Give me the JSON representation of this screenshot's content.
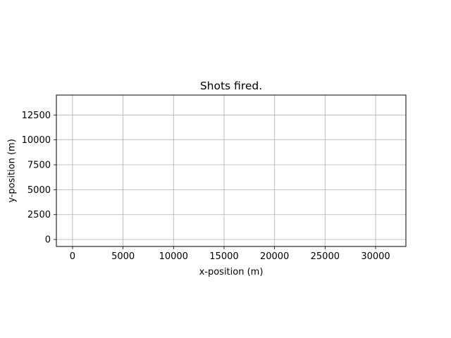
{
  "chart_data": {
    "type": "line",
    "title": "Shots fired.",
    "xlabel": "x-position (m)",
    "ylabel": "y-position (m)",
    "xlim": [
      -1600,
      33000
    ],
    "ylim": [
      -700,
      14500
    ],
    "xticks": [
      0,
      5000,
      10000,
      15000,
      20000,
      25000,
      30000
    ],
    "yticks": [
      0,
      2500,
      5000,
      7500,
      10000,
      12500
    ],
    "grid": true,
    "series": []
  },
  "colors": {
    "grid": "#b0b0b0",
    "axes": "#000000",
    "background": "#ffffff"
  }
}
